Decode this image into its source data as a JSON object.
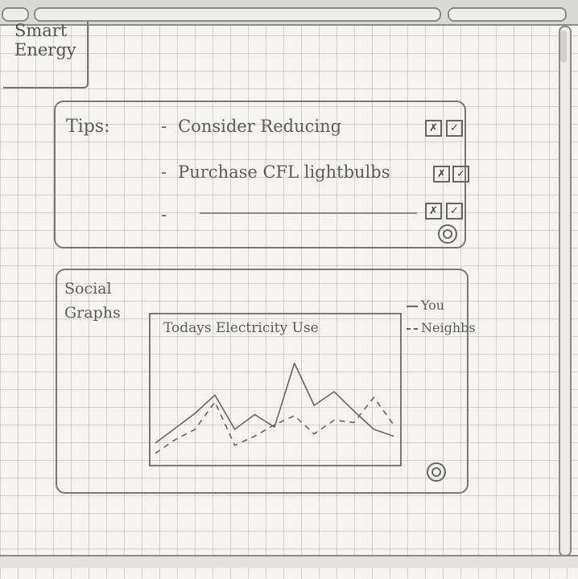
{
  "logo": {
    "line1": "Smart",
    "line2": "Energy"
  },
  "tips": {
    "label": "Tips:",
    "items": [
      {
        "bullet": "-",
        "text": "Consider Reducing"
      },
      {
        "bullet": "-",
        "text": "Purchase CFL lightbulbs"
      },
      {
        "bullet": "-",
        "text": ""
      }
    ],
    "dismiss_glyph": "✗",
    "accept_glyph": "✓"
  },
  "social": {
    "label_line1": "Social",
    "label_line2": "Graphs",
    "legend": {
      "you": "You",
      "neighbors": "Neighbs"
    }
  },
  "chart_data": {
    "type": "line",
    "title": "Todays Electricity Use",
    "xlabel": "",
    "ylabel": "",
    "ylim": [
      0,
      10
    ],
    "x": [
      0,
      1,
      2,
      3,
      4,
      5,
      6,
      7,
      8,
      9,
      10,
      11,
      12
    ],
    "series": [
      {
        "name": "You",
        "style": "solid",
        "values": [
          1.2,
          2.5,
          3.8,
          5.4,
          2.4,
          3.7,
          2.6,
          8.2,
          4.5,
          5.7,
          4.0,
          2.4,
          1.8
        ]
      },
      {
        "name": "Neighbs",
        "style": "dashed",
        "values": [
          0.3,
          1.5,
          2.4,
          4.8,
          1.0,
          1.8,
          2.8,
          3.6,
          2.0,
          3.2,
          3.0,
          5.2,
          2.8
        ]
      }
    ]
  },
  "colors": {
    "paper": "#f4f3ef",
    "pencil": "#666666",
    "grid": "#969696"
  },
  "icons": {
    "settings": "gear-icon"
  }
}
